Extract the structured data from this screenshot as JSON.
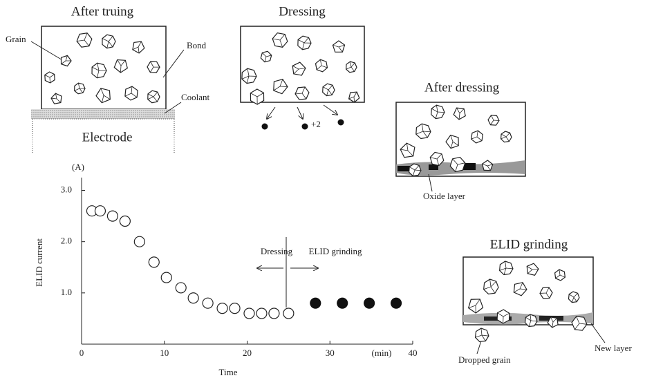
{
  "chart_data": {
    "type": "scatter",
    "x_label": "Time",
    "y_label": "ELID current",
    "y_unit": "(A)",
    "x_unit": "(min)",
    "xlim": [
      0,
      40
    ],
    "xticks": [
      0,
      10,
      20,
      30,
      40
    ],
    "ylim": [
      0,
      3.25
    ],
    "yticks": [
      {
        "value": 1,
        "label": "1.0"
      },
      {
        "value": 2,
        "label": "2.0"
      },
      {
        "value": 3,
        "label": "3.0"
      }
    ],
    "series": [
      {
        "name": "Dressing",
        "color": "#222222",
        "filled": false,
        "x": [
          1.25,
          2.25,
          3.75,
          5.25,
          7,
          8.75,
          10.25,
          12,
          13.5,
          15.25,
          17,
          18.5,
          20.25,
          21.75,
          23.25,
          25
        ],
        "values": [
          2.6,
          2.6,
          2.5,
          2.4,
          2.0,
          1.6,
          1.3,
          1.1,
          0.9,
          0.8,
          0.7,
          0.7,
          0.6,
          0.6,
          0.6,
          0.6
        ]
      },
      {
        "name": "ELID grinding",
        "color": "#111111",
        "filled": true,
        "x": [
          28.25,
          31.5,
          34.75,
          38
        ],
        "values": [
          0.8,
          0.8,
          0.8,
          0.8
        ]
      }
    ]
  },
  "panels": [
    {
      "title": "After truing",
      "labels": [
        "Grain",
        "Bond",
        "Coolant",
        "Electrode"
      ]
    },
    {
      "title": "Dressing",
      "labels": [
        "+2"
      ]
    },
    {
      "title": "After dressing",
      "labels": [
        "Oxide layer"
      ]
    },
    {
      "title": "ELID grinding",
      "labels": [
        "Dropped grain",
        "New layer"
      ]
    }
  ]
}
